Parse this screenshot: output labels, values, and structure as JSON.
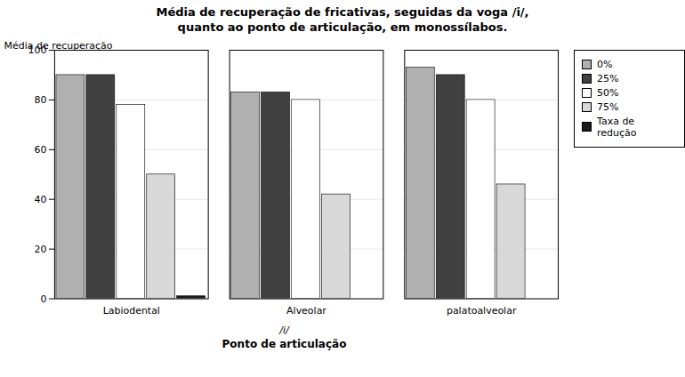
{
  "chart_data": {
    "type": "bar",
    "title": "Média de recuperação de fricativas, seguidas da voga /i/,\nquanto ao ponto de articulação, em monossílabos.",
    "categories": [
      "Labiodental",
      "Alveolar",
      "palatoalveolar"
    ],
    "series": [
      {
        "name": "0%",
        "color": "#b0b0b0",
        "values": [
          90,
          83,
          93
        ]
      },
      {
        "name": "25%",
        "color": "#404040",
        "values": [
          90,
          83,
          90
        ]
      },
      {
        "name": "50%",
        "color": "#ffffff",
        "values": [
          78,
          80,
          80
        ]
      },
      {
        "name": "75%",
        "color": "#d8d8d8",
        "values": [
          50,
          42,
          46
        ]
      },
      {
        "name": "Taxa de redução",
        "color": "#1a1a1a",
        "values": [
          1,
          0,
          0
        ]
      }
    ],
    "ylabel": "Média de recuperação",
    "xlabel": "Ponto de articulação",
    "annotations": [
      "/i/"
    ],
    "ylim": [
      0,
      100
    ],
    "yticks": [
      0,
      20,
      40,
      60,
      80,
      100
    ],
    "grid": true,
    "legend": "right"
  }
}
